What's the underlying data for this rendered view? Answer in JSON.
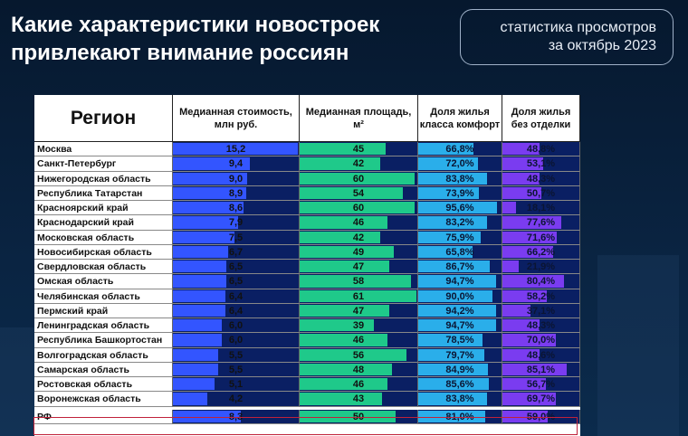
{
  "header": {
    "title": "Какие характеристики новостроек\nпривлекают внимание россиян",
    "stats_line1": "статистика просмотров",
    "stats_line2": "за октябрь 2023"
  },
  "chart_data": {
    "type": "table",
    "columns": [
      "Регион",
      "Медианная стоимость,\nмлн руб.",
      "Медианная площадь,\nм²",
      "Доля жилья\nкласса комфорт",
      "Доля жилья\nбез отделки"
    ],
    "rows": [
      {
        "region": "Москва",
        "price": "15,2",
        "area": "45",
        "comfort": "66,8%",
        "unfinished": "48,8%"
      },
      {
        "region": "Санкт-Петербург",
        "price": "9,4",
        "area": "42",
        "comfort": "72,0%",
        "unfinished": "53,1%"
      },
      {
        "region": "Нижегородская область",
        "price": "9,0",
        "area": "60",
        "comfort": "83,8%",
        "unfinished": "48,3%"
      },
      {
        "region": "Республика Татарстан",
        "price": "8,9",
        "area": "54",
        "comfort": "73,9%",
        "unfinished": "50,7%"
      },
      {
        "region": "Красноярский край",
        "price": "8,6",
        "area": "60",
        "comfort": "95,6%",
        "unfinished": "18,1%"
      },
      {
        "region": "Краснодарский край",
        "price": "7,9",
        "area": "46",
        "comfort": "83,2%",
        "unfinished": "77,6%"
      },
      {
        "region": "Московская область",
        "price": "7,5",
        "area": "42",
        "comfort": "75,9%",
        "unfinished": "71,6%"
      },
      {
        "region": "Новосибирская область",
        "price": "6,7",
        "area": "49",
        "comfort": "65,8%",
        "unfinished": "66,2%"
      },
      {
        "region": "Свердловская область",
        "price": "6,5",
        "area": "47",
        "comfort": "86,7%",
        "unfinished": "21,9%"
      },
      {
        "region": "Омская область",
        "price": "6,5",
        "area": "58",
        "comfort": "94,7%",
        "unfinished": "80,4%"
      },
      {
        "region": "Челябинская область",
        "price": "6,4",
        "area": "61",
        "comfort": "90,0%",
        "unfinished": "58,2%"
      },
      {
        "region": "Пермский край",
        "price": "6,4",
        "area": "47",
        "comfort": "94,2%",
        "unfinished": "37,1%"
      },
      {
        "region": "Ленинградская область",
        "price": "6,0",
        "area": "39",
        "comfort": "94,7%",
        "unfinished": "48,3%"
      },
      {
        "region": "Республика Башкортостан",
        "price": "6,0",
        "area": "46",
        "comfort": "78,5%",
        "unfinished": "70,0%"
      },
      {
        "region": "Волгоградская область",
        "price": "5,5",
        "area": "56",
        "comfort": "79,7%",
        "unfinished": "48,6%"
      },
      {
        "region": "Самарская область",
        "price": "5,5",
        "area": "48",
        "comfort": "84,9%",
        "unfinished": "85,1%"
      },
      {
        "region": "Ростовская область",
        "price": "5,1",
        "area": "46",
        "comfort": "85,6%",
        "unfinished": "56,7%"
      },
      {
        "region": "Воронежская область",
        "price": "4,2",
        "area": "43",
        "comfort": "83,8%",
        "unfinished": "69,7%"
      },
      {
        "region": "РФ",
        "price": "8,3",
        "area": "50",
        "comfort": "81,0%",
        "unfinished": "59,0%"
      }
    ],
    "column_colors": {
      "price": "#3355ff",
      "area": "#1fc98a",
      "comfort": "#2aaeea",
      "unfinished": "#7a3cf0",
      "cell_background": "#0a1f63",
      "highlight_row_border": "#c0213a"
    }
  }
}
